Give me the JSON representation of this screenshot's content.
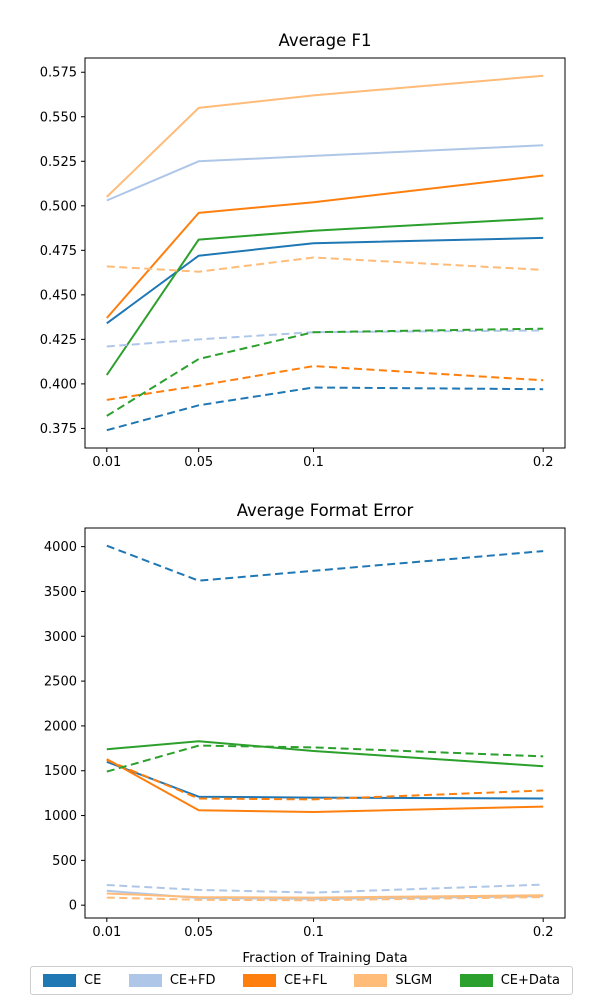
{
  "figure": {
    "background": "#ffffff",
    "axis_color": "#000000"
  },
  "legend": {
    "position": "bottom-outside-expanded",
    "entries": [
      {
        "label": "CE",
        "color": "#1f77b4"
      },
      {
        "label": "CE+FD",
        "color": "#aec7e8"
      },
      {
        "label": "CE+FL",
        "color": "#ff7f0e"
      },
      {
        "label": "SLGM",
        "color": "#ffbb78"
      },
      {
        "label": "CE+Data",
        "color": "#2ca02c"
      }
    ]
  },
  "chart_data": [
    {
      "type": "line",
      "title": "Average F1",
      "xlabel": "",
      "ylabel": "",
      "grid": false,
      "x": [
        0.01,
        0.05,
        0.1,
        0.2
      ],
      "xlim": [
        0.0005,
        0.2095
      ],
      "ylim": [
        0.364,
        0.583
      ],
      "xticks": [
        0.01,
        0.05,
        0.1,
        0.2
      ],
      "xtick_labels": [
        "0.01",
        "0.05",
        "0.1",
        "0.2"
      ],
      "yticks": [
        0.375,
        0.4,
        0.425,
        0.45,
        0.475,
        0.5,
        0.525,
        0.55,
        0.575
      ],
      "ytick_labels": [
        "0.375",
        "0.400",
        "0.425",
        "0.450",
        "0.475",
        "0.500",
        "0.525",
        "0.550",
        "0.575"
      ],
      "series": [
        {
          "name": "CE",
          "line_style": "solid",
          "color": "#1f77b4",
          "values": [
            0.434,
            0.472,
            0.479,
            0.482
          ]
        },
        {
          "name": "CE+FD",
          "line_style": "solid",
          "color": "#aec7e8",
          "values": [
            0.503,
            0.525,
            0.528,
            0.534
          ]
        },
        {
          "name": "CE+FL",
          "line_style": "solid",
          "color": "#ff7f0e",
          "values": [
            0.437,
            0.496,
            0.502,
            0.517
          ]
        },
        {
          "name": "SLGM",
          "line_style": "solid",
          "color": "#ffbb78",
          "values": [
            0.505,
            0.555,
            0.562,
            0.573
          ]
        },
        {
          "name": "CE+Data",
          "line_style": "solid",
          "color": "#2ca02c",
          "values": [
            0.405,
            0.481,
            0.486,
            0.493
          ]
        },
        {
          "name": "CE",
          "line_style": "dashed",
          "color": "#1f77b4",
          "values": [
            0.374,
            0.388,
            0.398,
            0.397
          ]
        },
        {
          "name": "CE+FD",
          "line_style": "dashed",
          "color": "#aec7e8",
          "values": [
            0.421,
            0.425,
            0.429,
            0.43
          ]
        },
        {
          "name": "CE+FL",
          "line_style": "dashed",
          "color": "#ff7f0e",
          "values": [
            0.391,
            0.399,
            0.41,
            0.402
          ]
        },
        {
          "name": "SLGM",
          "line_style": "dashed",
          "color": "#ffbb78",
          "values": [
            0.466,
            0.463,
            0.471,
            0.464
          ]
        },
        {
          "name": "CE+Data",
          "line_style": "dashed",
          "color": "#2ca02c",
          "values": [
            0.382,
            0.414,
            0.429,
            0.431
          ]
        }
      ]
    },
    {
      "type": "line",
      "title": "Average Format Error",
      "xlabel": "Fraction of Training Data",
      "ylabel": "",
      "grid": false,
      "x": [
        0.01,
        0.05,
        0.1,
        0.2
      ],
      "xlim": [
        0.0005,
        0.2095
      ],
      "ylim": [
        -143,
        4208
      ],
      "xticks": [
        0.01,
        0.05,
        0.1,
        0.2
      ],
      "xtick_labels": [
        "0.01",
        "0.05",
        "0.1",
        "0.2"
      ],
      "yticks": [
        0,
        500,
        1000,
        1500,
        2000,
        2500,
        3000,
        3500,
        4000
      ],
      "ytick_labels": [
        "0",
        "500",
        "1000",
        "1500",
        "2000",
        "2500",
        "3000",
        "3500",
        "4000"
      ],
      "series": [
        {
          "name": "CE",
          "line_style": "solid",
          "color": "#1f77b4",
          "values": [
            1600,
            1210,
            1200,
            1190
          ]
        },
        {
          "name": "CE+FD",
          "line_style": "solid",
          "color": "#aec7e8",
          "values": [
            160,
            80,
            70,
            100
          ]
        },
        {
          "name": "CE+FL",
          "line_style": "solid",
          "color": "#ff7f0e",
          "values": [
            1630,
            1060,
            1040,
            1100
          ]
        },
        {
          "name": "SLGM",
          "line_style": "solid",
          "color": "#ffbb78",
          "values": [
            130,
            90,
            85,
            110
          ]
        },
        {
          "name": "CE+Data",
          "line_style": "solid",
          "color": "#2ca02c",
          "values": [
            1740,
            1830,
            1720,
            1550
          ]
        },
        {
          "name": "CE",
          "line_style": "dashed",
          "color": "#1f77b4",
          "values": [
            4010,
            3620,
            3730,
            3950
          ]
        },
        {
          "name": "CE+FD",
          "line_style": "dashed",
          "color": "#aec7e8",
          "values": [
            225,
            170,
            140,
            230
          ]
        },
        {
          "name": "CE+FL",
          "line_style": "dashed",
          "color": "#ff7f0e",
          "values": [
            1620,
            1190,
            1180,
            1280
          ]
        },
        {
          "name": "SLGM",
          "line_style": "dashed",
          "color": "#ffbb78",
          "values": [
            85,
            60,
            55,
            90
          ]
        },
        {
          "name": "CE+Data",
          "line_style": "dashed",
          "color": "#2ca02c",
          "values": [
            1490,
            1780,
            1760,
            1660
          ]
        }
      ]
    }
  ]
}
